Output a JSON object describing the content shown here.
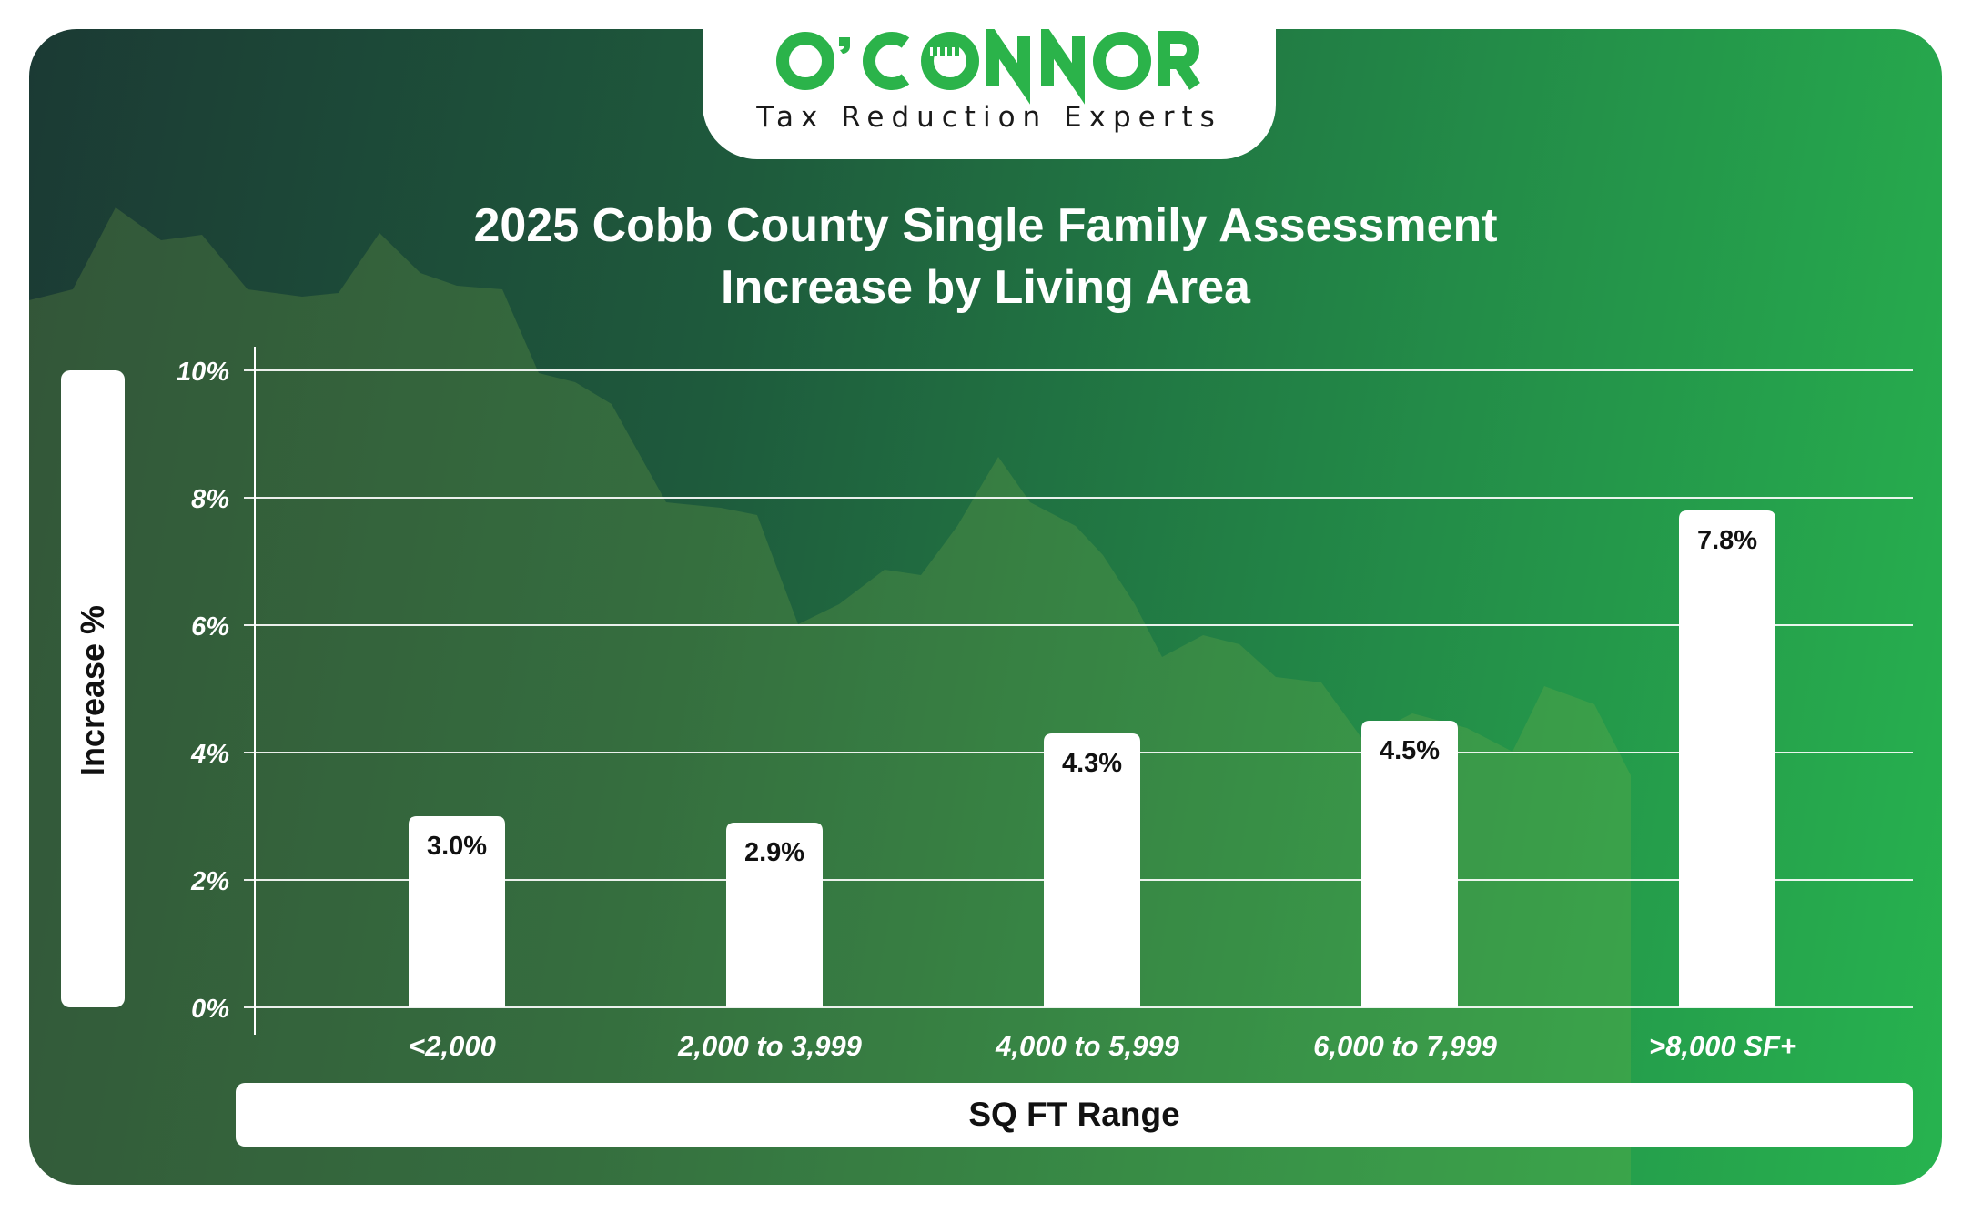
{
  "brand": {
    "name": "O'CONNOR",
    "tagline": "Tax Reduction Experts",
    "logo_color": "#2bb34a"
  },
  "colors": {
    "bar": "#ffffff",
    "background_start": "#1b3a34",
    "background_end": "#27b34f",
    "text": "#ffffff",
    "value_label": "#111111"
  },
  "chart_data": {
    "type": "bar",
    "title": "2025 Cobb County Single Family Assessment\nIncrease by Living Area",
    "xlabel": "SQ FT Range",
    "ylabel": "Increase %",
    "categories": [
      "<2,000",
      "2,000 to 3,999",
      "4,000 to 5,999",
      "6,000 to 7,999",
      ">8,000 SF+"
    ],
    "values": [
      3.0,
      2.9,
      4.3,
      4.5,
      7.8
    ],
    "value_labels": [
      "3.0%",
      "2.9%",
      "4.3%",
      "4.5%",
      "7.8%"
    ],
    "ylim": [
      0,
      10
    ],
    "yticks": [
      0,
      2,
      4,
      6,
      8,
      10
    ],
    "ytick_labels": [
      "0%",
      "2%",
      "4%",
      "6%",
      "8%",
      "10%"
    ],
    "grid": true,
    "legend": "none"
  }
}
